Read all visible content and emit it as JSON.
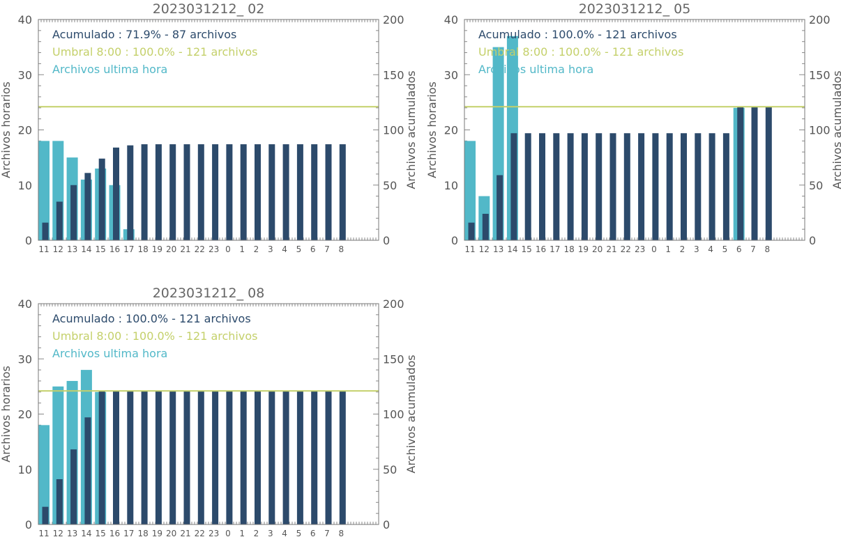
{
  "colors": {
    "hourly": "#52b8c8",
    "cumulative": "#2c4a6b",
    "threshold": "#c4d06a",
    "text": "#555555"
  },
  "chart_data": [
    {
      "type": "bar",
      "title": "2023031212_ 02",
      "ylabel": "Archivos horarios",
      "y2label": "Archivos acumulados",
      "ylim": [
        0,
        40
      ],
      "y2lim": [
        0,
        200
      ],
      "yticks": [
        "0",
        "10",
        "20",
        "30",
        "40"
      ],
      "y2ticks": [
        "0",
        "50",
        "100",
        "150",
        "200"
      ],
      "categories": [
        "11",
        "12",
        "13",
        "14",
        "15",
        "16",
        "17",
        "18",
        "19",
        "20",
        "21",
        "22",
        "23",
        "0",
        "1",
        "2",
        "3",
        "4",
        "5",
        "6",
        "7",
        "8"
      ],
      "legend": [
        "Acumulado : 71.9% - 87 archivos",
        "Umbral 8:00 : 100.0% - 121 archivos",
        "Archivos ultima hora"
      ],
      "threshold": 121,
      "series": [
        {
          "name": "Archivos ultima hora",
          "axis": "left",
          "values": [
            18,
            18,
            15,
            11,
            13,
            10,
            2,
            0,
            0,
            0,
            0,
            0,
            0,
            0,
            0,
            0,
            0,
            0,
            0,
            0,
            0,
            0
          ]
        },
        {
          "name": "Acumulado",
          "axis": "right",
          "values": [
            16,
            35,
            50,
            61,
            74,
            84,
            86,
            87,
            87,
            87,
            87,
            87,
            87,
            87,
            87,
            87,
            87,
            87,
            87,
            87,
            87,
            87
          ]
        }
      ]
    },
    {
      "type": "bar",
      "title": "2023031212_ 05",
      "ylabel": "Archivos horarios",
      "y2label": "Archivos acumulados",
      "ylim": [
        0,
        40
      ],
      "y2lim": [
        0,
        200
      ],
      "yticks": [
        "0",
        "10",
        "20",
        "30",
        "40"
      ],
      "y2ticks": [
        "0",
        "50",
        "100",
        "150",
        "200"
      ],
      "categories": [
        "11",
        "12",
        "13",
        "14",
        "15",
        "16",
        "17",
        "18",
        "19",
        "20",
        "21",
        "22",
        "23",
        "0",
        "1",
        "2",
        "3",
        "4",
        "5",
        "6",
        "7",
        "8"
      ],
      "legend": [
        "Acumulado : 100.0% - 121 archivos",
        "Umbral 8:00 : 100.0% - 121 archivos",
        "Archivos ultima hora"
      ],
      "threshold": 121,
      "series": [
        {
          "name": "Archivos ultima hora",
          "axis": "left",
          "values": [
            18,
            8,
            35,
            37,
            0,
            0,
            0,
            0,
            0,
            0,
            0,
            0,
            0,
            0,
            0,
            0,
            0,
            0,
            0,
            24,
            0,
            0
          ]
        },
        {
          "name": "Acumulado",
          "axis": "right",
          "values": [
            16,
            24,
            59,
            97,
            97,
            97,
            97,
            97,
            97,
            97,
            97,
            97,
            97,
            97,
            97,
            97,
            97,
            97,
            97,
            121,
            121,
            121
          ]
        }
      ]
    },
    {
      "type": "bar",
      "title": "2023031212_ 08",
      "ylabel": "Archivos horarios",
      "y2label": "Archivos acumulados",
      "ylim": [
        0,
        40
      ],
      "y2lim": [
        0,
        200
      ],
      "yticks": [
        "0",
        "10",
        "20",
        "30",
        "40"
      ],
      "y2ticks": [
        "0",
        "50",
        "100",
        "150",
        "200"
      ],
      "categories": [
        "11",
        "12",
        "13",
        "14",
        "15",
        "16",
        "17",
        "18",
        "19",
        "20",
        "21",
        "22",
        "23",
        "0",
        "1",
        "2",
        "3",
        "4",
        "5",
        "6",
        "7",
        "8"
      ],
      "legend": [
        "Acumulado : 100.0% - 121 archivos",
        "Umbral 8:00 : 100.0% - 121 archivos",
        "Archivos ultima hora"
      ],
      "threshold": 121,
      "series": [
        {
          "name": "Archivos ultima hora",
          "axis": "left",
          "values": [
            18,
            25,
            26,
            28,
            24,
            0,
            0,
            0,
            0,
            0,
            0,
            0,
            0,
            0,
            0,
            0,
            0,
            0,
            0,
            0,
            0,
            0
          ]
        },
        {
          "name": "Acumulado",
          "axis": "right",
          "values": [
            16,
            41,
            68,
            97,
            121,
            121,
            121,
            121,
            121,
            121,
            121,
            121,
            121,
            121,
            121,
            121,
            121,
            121,
            121,
            121,
            121,
            121
          ]
        }
      ]
    }
  ]
}
